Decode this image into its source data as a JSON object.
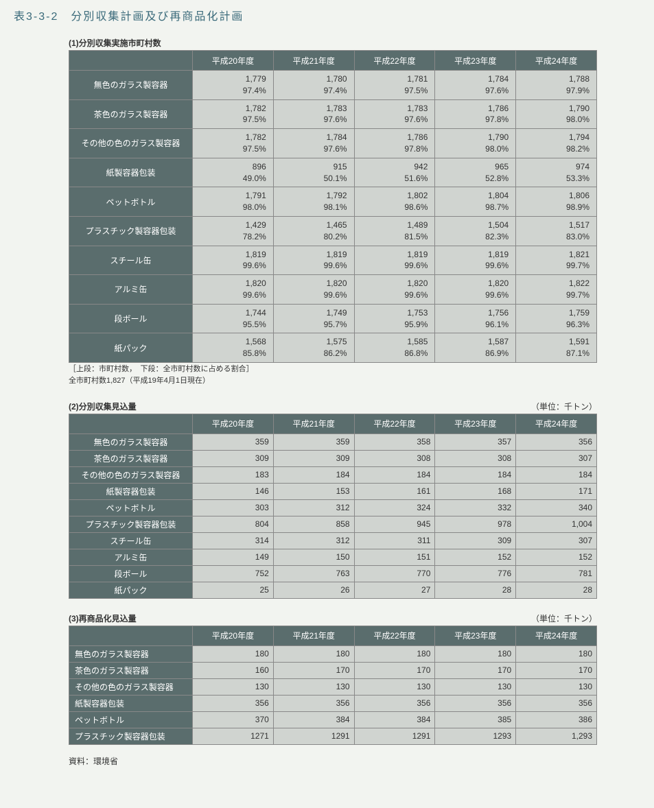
{
  "title": "表3-3-2　分別収集計画及び再商品化計画",
  "years": [
    "平成20年度",
    "平成21年度",
    "平成22年度",
    "平成23年度",
    "平成24年度"
  ],
  "table1": {
    "title": "(1)分別収集実施市町村数",
    "rows": [
      {
        "label": "無色のガラス製容器",
        "vals": [
          [
            "1,779",
            "97.4%"
          ],
          [
            "1,780",
            "97.4%"
          ],
          [
            "1,781",
            "97.5%"
          ],
          [
            "1,784",
            "97.6%"
          ],
          [
            "1,788",
            "97.9%"
          ]
        ]
      },
      {
        "label": "茶色のガラス製容器",
        "vals": [
          [
            "1,782",
            "97.5%"
          ],
          [
            "1,783",
            "97.6%"
          ],
          [
            "1,783",
            "97.6%"
          ],
          [
            "1,786",
            "97.8%"
          ],
          [
            "1,790",
            "98.0%"
          ]
        ]
      },
      {
        "label": "その他の色のガラス製容器",
        "vals": [
          [
            "1,782",
            "97.5%"
          ],
          [
            "1,784",
            "97.6%"
          ],
          [
            "1,786",
            "97.8%"
          ],
          [
            "1,790",
            "98.0%"
          ],
          [
            "1,794",
            "98.2%"
          ]
        ]
      },
      {
        "label": "紙製容器包装",
        "vals": [
          [
            "896",
            "49.0%"
          ],
          [
            "915",
            "50.1%"
          ],
          [
            "942",
            "51.6%"
          ],
          [
            "965",
            "52.8%"
          ],
          [
            "974",
            "53.3%"
          ]
        ]
      },
      {
        "label": "ペットボトル",
        "vals": [
          [
            "1,791",
            "98.0%"
          ],
          [
            "1,792",
            "98.1%"
          ],
          [
            "1,802",
            "98.6%"
          ],
          [
            "1,804",
            "98.7%"
          ],
          [
            "1,806",
            "98.9%"
          ]
        ]
      },
      {
        "label": "プラスチック製容器包装",
        "vals": [
          [
            "1,429",
            "78.2%"
          ],
          [
            "1,465",
            "80.2%"
          ],
          [
            "1,489",
            "81.5%"
          ],
          [
            "1,504",
            "82.3%"
          ],
          [
            "1,517",
            "83.0%"
          ]
        ]
      },
      {
        "label": "スチール缶",
        "vals": [
          [
            "1,819",
            "99.6%"
          ],
          [
            "1,819",
            "99.6%"
          ],
          [
            "1,819",
            "99.6%"
          ],
          [
            "1,819",
            "99.6%"
          ],
          [
            "1,821",
            "99.7%"
          ]
        ]
      },
      {
        "label": "アルミ缶",
        "vals": [
          [
            "1,820",
            "99.6%"
          ],
          [
            "1,820",
            "99.6%"
          ],
          [
            "1,820",
            "99.6%"
          ],
          [
            "1,820",
            "99.6%"
          ],
          [
            "1,822",
            "99.7%"
          ]
        ]
      },
      {
        "label": "段ボール",
        "vals": [
          [
            "1,744",
            "95.5%"
          ],
          [
            "1,749",
            "95.7%"
          ],
          [
            "1,753",
            "95.9%"
          ],
          [
            "1,756",
            "96.1%"
          ],
          [
            "1,759",
            "96.3%"
          ]
        ]
      },
      {
        "label": "紙パック",
        "vals": [
          [
            "1,568",
            "85.8%"
          ],
          [
            "1,575",
            "86.2%"
          ],
          [
            "1,585",
            "86.8%"
          ],
          [
            "1,587",
            "86.9%"
          ],
          [
            "1,591",
            "87.1%"
          ]
        ]
      }
    ],
    "note1": "［上段：市町村数，　下段：全市町村数に占める割合］",
    "note2": "全市町村数1,827（平成19年4月1日現在）"
  },
  "table2": {
    "title": "(2)分別収集見込量",
    "unit": "（単位：千トン）",
    "rows": [
      {
        "label": "無色のガラス製容器",
        "vals": [
          "359",
          "359",
          "358",
          "357",
          "356"
        ]
      },
      {
        "label": "茶色のガラス製容器",
        "vals": [
          "309",
          "309",
          "308",
          "308",
          "307"
        ]
      },
      {
        "label": "その他の色のガラス製容器",
        "vals": [
          "183",
          "184",
          "184",
          "184",
          "184"
        ]
      },
      {
        "label": "紙製容器包装",
        "vals": [
          "146",
          "153",
          "161",
          "168",
          "171"
        ]
      },
      {
        "label": "ペットボトル",
        "vals": [
          "303",
          "312",
          "324",
          "332",
          "340"
        ]
      },
      {
        "label": "プラスチック製容器包装",
        "vals": [
          "804",
          "858",
          "945",
          "978",
          "1,004"
        ]
      },
      {
        "label": "スチール缶",
        "vals": [
          "314",
          "312",
          "311",
          "309",
          "307"
        ]
      },
      {
        "label": "アルミ缶",
        "vals": [
          "149",
          "150",
          "151",
          "152",
          "152"
        ]
      },
      {
        "label": "段ボール",
        "vals": [
          "752",
          "763",
          "770",
          "776",
          "781"
        ]
      },
      {
        "label": "紙パック",
        "vals": [
          "25",
          "26",
          "27",
          "28",
          "28"
        ]
      }
    ]
  },
  "table3": {
    "title": "(3)再商品化見込量",
    "unit": "（単位：千トン）",
    "rows": [
      {
        "label": "無色のガラス製容器",
        "vals": [
          "180",
          "180",
          "180",
          "180",
          "180"
        ]
      },
      {
        "label": "茶色のガラス製容器",
        "vals": [
          "160",
          "170",
          "170",
          "170",
          "170"
        ]
      },
      {
        "label": "その他の色のガラス製容器",
        "vals": [
          "130",
          "130",
          "130",
          "130",
          "130"
        ]
      },
      {
        "label": "紙製容器包装",
        "vals": [
          "356",
          "356",
          "356",
          "356",
          "356"
        ]
      },
      {
        "label": "ペットボトル",
        "vals": [
          "370",
          "384",
          "384",
          "385",
          "386"
        ]
      },
      {
        "label": "プラスチック製容器包装",
        "vals": [
          "1271",
          "1291",
          "1291",
          "1293",
          "1,293"
        ]
      }
    ]
  },
  "source": "資料：環境省",
  "colors": {
    "page_bg": "#f2f4f0",
    "title_color": "#3a6a7a",
    "header_bg": "#5a6d6d",
    "header_fg": "#ffffff",
    "cell_bg": "#d0d4d0",
    "border": "#888888"
  }
}
